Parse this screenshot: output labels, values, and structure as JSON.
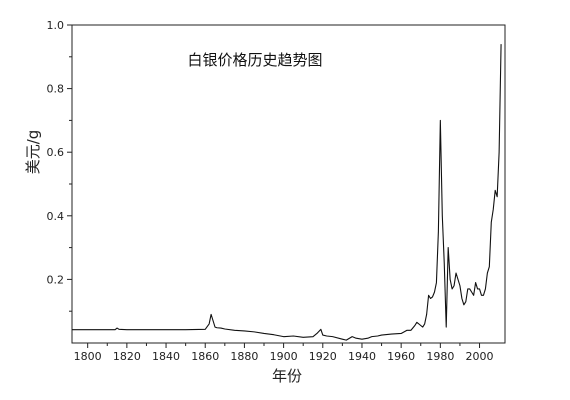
{
  "chart_data": {
    "type": "line",
    "title": "白银价格历史趋势图",
    "xlabel": "年份",
    "ylabel": "美元/g",
    "xlim": [
      1792,
      2013
    ],
    "ylim": [
      0,
      1.0
    ],
    "x_ticks": [
      1800,
      1820,
      1840,
      1860,
      1880,
      1900,
      1920,
      1940,
      1960,
      1980,
      2000
    ],
    "y_ticks": [
      0.2,
      0.4,
      0.6,
      0.8,
      1.0
    ],
    "y_tick_labels": [
      "0.2",
      "0.4",
      "0.6",
      "0.8",
      "1.0"
    ],
    "grid": false,
    "legend": "none",
    "colors": {
      "line": "#111111",
      "axis": "#222222",
      "text": "#222222"
    },
    "series": [
      {
        "x": [
          1792,
          1800,
          1810,
          1814,
          1815,
          1816,
          1820,
          1830,
          1840,
          1850,
          1860,
          1862,
          1863,
          1864,
          1865,
          1866,
          1868,
          1870,
          1875,
          1880,
          1885,
          1890,
          1895,
          1900,
          1905,
          1910,
          1915,
          1917,
          1919,
          1920,
          1922,
          1925,
          1930,
          1932,
          1935,
          1937,
          1940,
          1943,
          1945,
          1948,
          1950,
          1955,
          1960,
          1963,
          1965,
          1967,
          1968,
          1970,
          1971,
          1972,
          1973,
          1974,
          1975,
          1976,
          1977,
          1978,
          1979,
          1980,
          1981,
          1982,
          1983,
          1984,
          1985,
          1986,
          1987,
          1988,
          1989,
          1990,
          1991,
          1992,
          1993,
          1994,
          1995,
          1996,
          1997,
          1998,
          1999,
          2000,
          2001,
          2002,
          2003,
          2004,
          2005,
          2006,
          2007,
          2008,
          2009,
          2010,
          2011
        ],
        "y": [
          0.042,
          0.042,
          0.042,
          0.042,
          0.047,
          0.043,
          0.042,
          0.042,
          0.042,
          0.042,
          0.043,
          0.06,
          0.09,
          0.07,
          0.05,
          0.048,
          0.047,
          0.044,
          0.04,
          0.038,
          0.035,
          0.03,
          0.026,
          0.02,
          0.022,
          0.018,
          0.02,
          0.03,
          0.043,
          0.025,
          0.022,
          0.02,
          0.012,
          0.009,
          0.02,
          0.015,
          0.012,
          0.015,
          0.02,
          0.022,
          0.025,
          0.028,
          0.03,
          0.04,
          0.04,
          0.055,
          0.065,
          0.055,
          0.05,
          0.06,
          0.09,
          0.15,
          0.14,
          0.145,
          0.16,
          0.19,
          0.35,
          0.7,
          0.4,
          0.25,
          0.05,
          0.3,
          0.2,
          0.17,
          0.18,
          0.22,
          0.2,
          0.18,
          0.14,
          0.12,
          0.13,
          0.17,
          0.17,
          0.16,
          0.15,
          0.19,
          0.17,
          0.17,
          0.15,
          0.15,
          0.17,
          0.22,
          0.24,
          0.38,
          0.42,
          0.48,
          0.46,
          0.6,
          0.94
        ]
      }
    ]
  }
}
